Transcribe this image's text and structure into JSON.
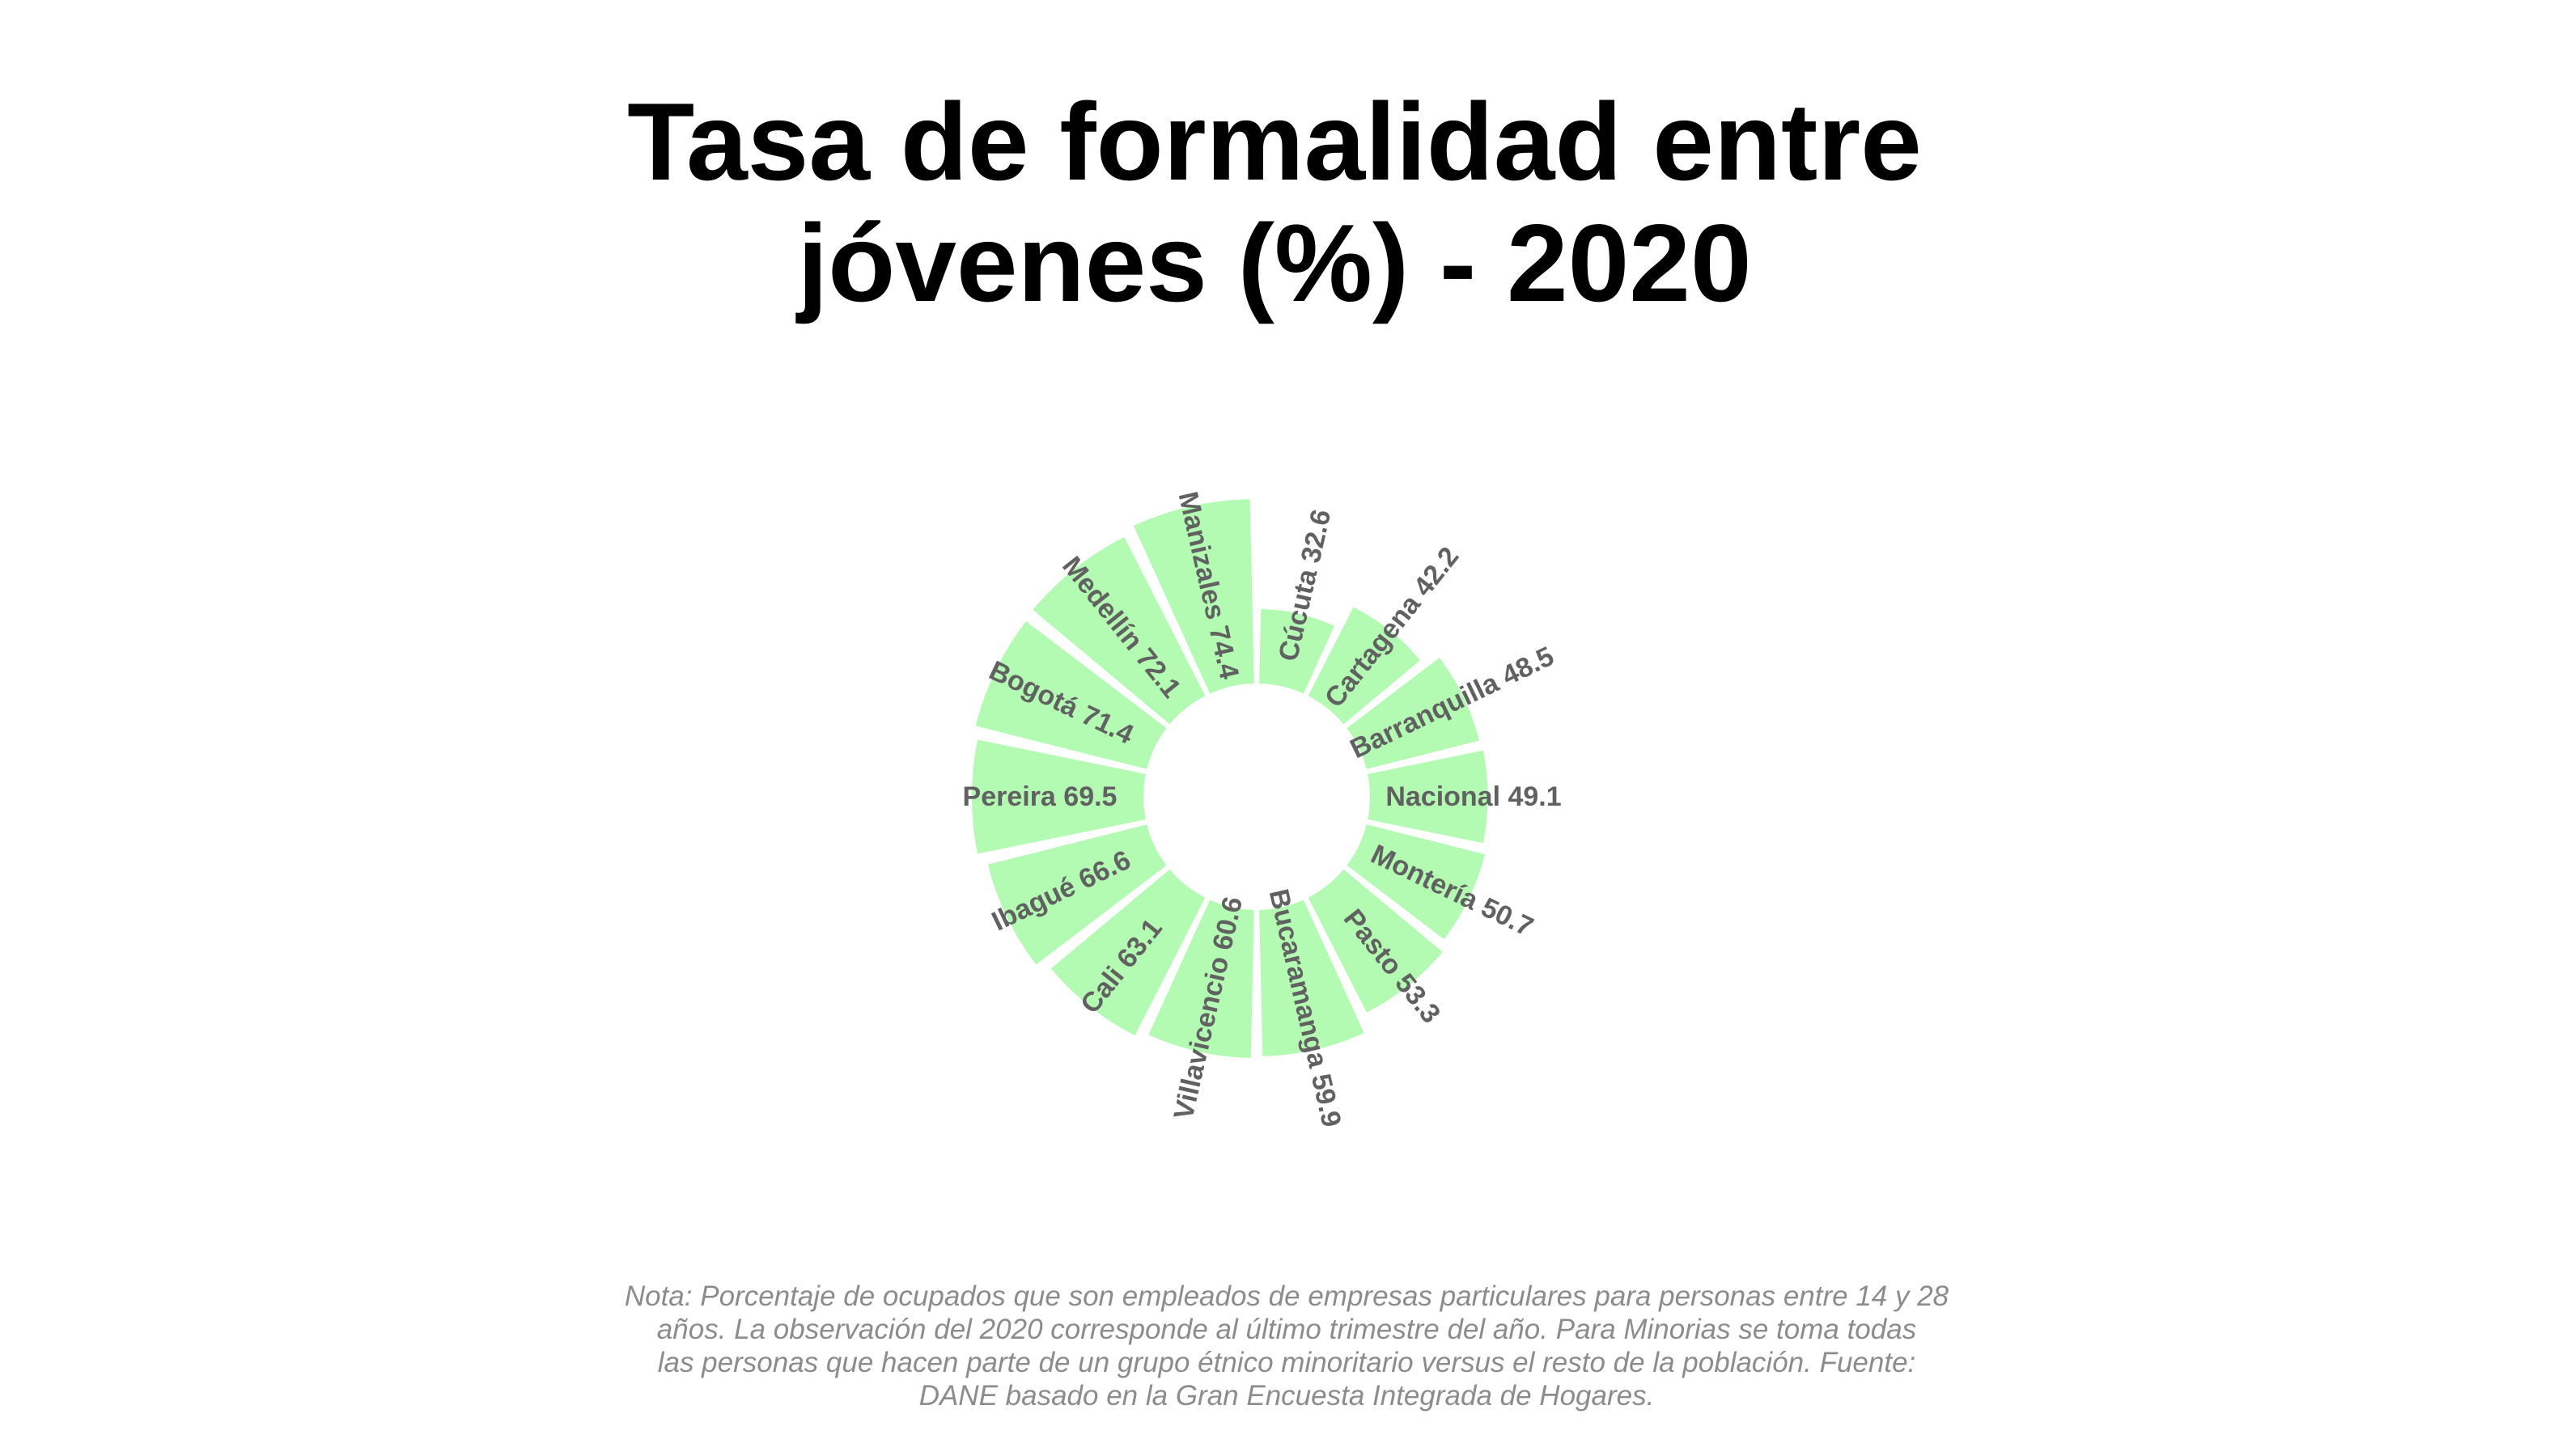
{
  "title": {
    "line1": "Tasa de formalidad entre",
    "line2": "jóvenes (%) - 2020"
  },
  "note": {
    "line1": "Nota: Porcentaje de ocupados que son empleados de empresas particulares para personas entre 14 y 28",
    "line2": "años. La observación del 2020 corresponde al último trimestre del año. Para Minorias se toma todas",
    "line3": "las personas que hacen parte de un grupo étnico minoritario versus el resto de la población. Fuente:",
    "line4": "DANE basado en la Gran Encuesta Integrada de Hogares."
  },
  "colors": {
    "bar": "#b3fbb3",
    "label": "#616161",
    "title": "#000000",
    "note": "#8c8c8c"
  },
  "chart_data": {
    "type": "bar",
    "coordinate_system": "polar",
    "grid": false,
    "categories": [
      "Cúcuta",
      "Cartagena",
      "Barranquilla",
      "Nacional",
      "Montería",
      "Pasto",
      "Bucaramanga",
      "Villavicencio",
      "Cali",
      "Ibagué",
      "Pereira",
      "Bogotá",
      "Medellín",
      "Manizales"
    ],
    "values": [
      32.6,
      42.2,
      48.5,
      49.1,
      50.7,
      53.3,
      59.9,
      60.6,
      63.1,
      66.6,
      69.5,
      71.4,
      72.1,
      74.4
    ],
    "labels": [
      "Cúcuta 32.6",
      "Cartagena 42.2",
      "Barranquilla 48.5",
      "Nacional 49.1",
      "Montería 50.7",
      "Pasto 53.3",
      "Bucaramanga 59.9",
      "Villavicencio 60.6",
      "Cali 63.1",
      "Ibagué 66.6",
      "Pereira 69.5",
      "Bogotá 71.4",
      "Medellín 72.1",
      "Manizales 74.4"
    ]
  }
}
